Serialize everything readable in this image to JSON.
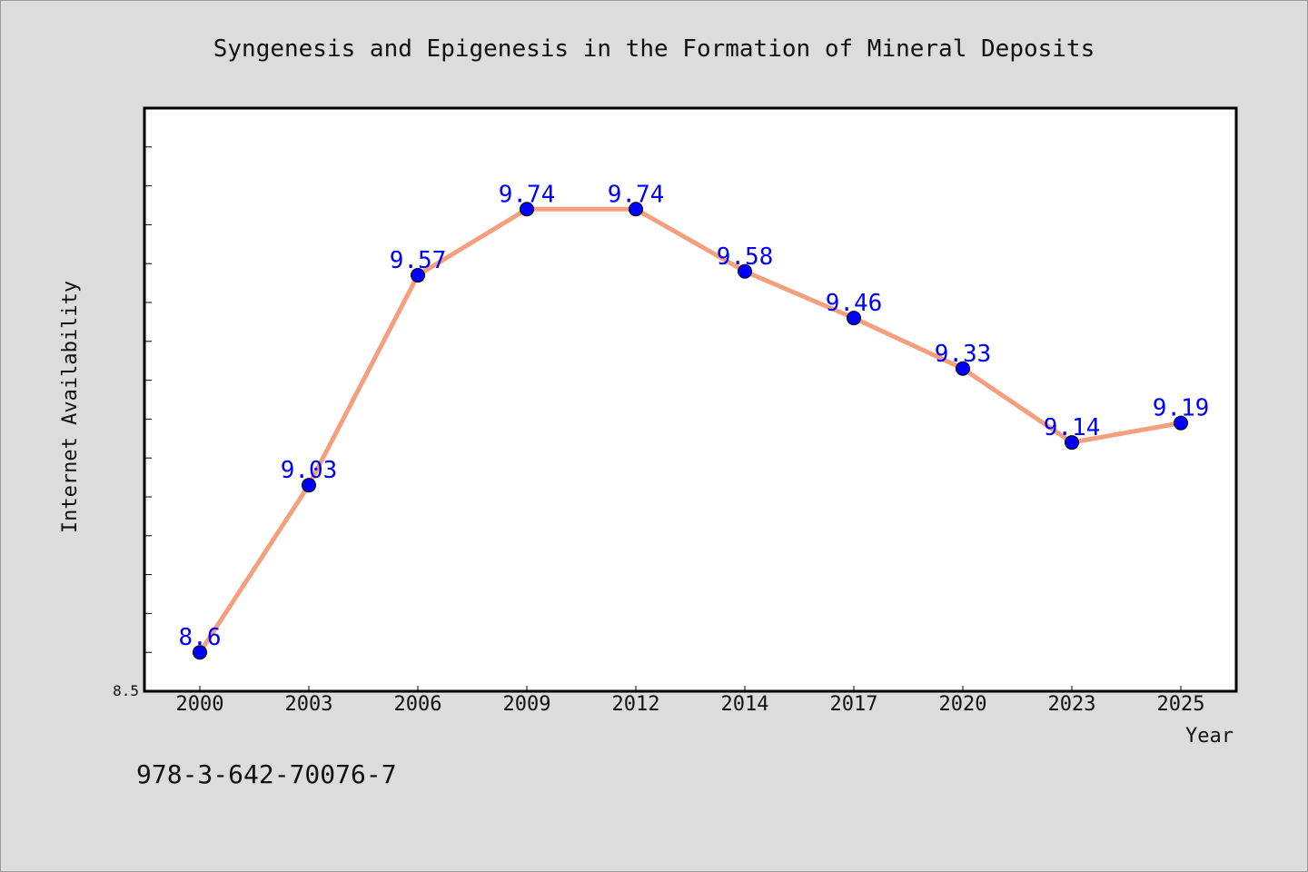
{
  "chart_data": {
    "type": "line",
    "title": "Syngenesis and Epigenesis in the Formation of Mineral Deposits",
    "xlabel": "Year",
    "ylabel": "Internet Availability",
    "categories": [
      "2000",
      "2003",
      "2006",
      "2009",
      "2012",
      "2014",
      "2017",
      "2020",
      "2023",
      "2025"
    ],
    "series": [
      {
        "values": [
          8.6,
          9.03,
          9.57,
          9.74,
          9.74,
          9.58,
          9.46,
          9.33,
          9.14,
          9.19
        ],
        "labels": [
          "8.6",
          "9.03",
          "9.57",
          "9.74",
          "9.74",
          "9.58",
          "9.46",
          "9.33",
          "9.14",
          "9.19"
        ]
      }
    ],
    "ylim": [
      8.5,
      10.0
    ],
    "y_tick_labels": [
      "8.5"
    ],
    "grid": false,
    "colors": {
      "line": "#f4a07e",
      "marker": "#0000ff",
      "label": "#0000ff",
      "background": "#dcdcdc",
      "plot_background": "#ffffff"
    }
  },
  "footer": {
    "isbn": "978-3-642-70076-7"
  }
}
